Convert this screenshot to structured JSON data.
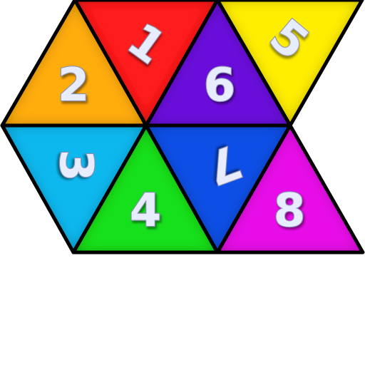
{
  "colors": {
    "edge": "#000000",
    "number_fill": "#e8ecff",
    "number_stroke": "#8a8fb0",
    "background": "#ffffff"
  },
  "tiles": [
    {
      "label": "1",
      "color": "#ff1a1a",
      "orientation": "down",
      "rotation": 36
    },
    {
      "label": "2",
      "color": "#ffac08",
      "orientation": "up",
      "rotation": 0
    },
    {
      "label": "3",
      "color": "#11b8ef",
      "orientation": "down",
      "rotation": 90
    },
    {
      "label": "4",
      "color": "#16e01a",
      "orientation": "up",
      "rotation": 0
    },
    {
      "label": "5",
      "color": "#ffee00",
      "orientation": "down",
      "rotation": 40
    },
    {
      "label": "6",
      "color": "#6a0ddb",
      "orientation": "up",
      "rotation": 0
    },
    {
      "label": "7",
      "color": "#0a4fe6",
      "orientation": "down",
      "rotation": 160
    },
    {
      "label": "8",
      "color": "#e80ae8",
      "orientation": "up",
      "rotation": 0
    }
  ]
}
